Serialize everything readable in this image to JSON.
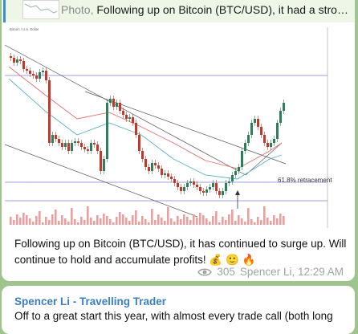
{
  "reply": {
    "label": "Photo,",
    "text": "Following up on Bitcoin (BTC/USD), it had a strong ..."
  },
  "post": {
    "caption": "Following up on Bitcoin (BTC/USD), it has continued to surge up. Will continue to hold and accumulate profits! 💰 🙂 🔥",
    "views": "305",
    "author_time": "Spencer Li, 12:29 AM",
    "chart": {
      "symbol": "Bitcoin / U.S. Dollar",
      "annotation": "61.8% retracement"
    }
  },
  "next_post": {
    "author": "Spencer Li - Travelling Trader",
    "text": "Off to a great start this year, with almost every trade call (both long"
  },
  "colors": {
    "background": "#9fc48d",
    "bubble": "#ffffff",
    "link": "#3a7fc1",
    "up_candle": "#2e7d5b",
    "down_candle": "#c0392b",
    "volume": "#e8a0a0"
  },
  "icons": [
    "eye-icon"
  ]
}
